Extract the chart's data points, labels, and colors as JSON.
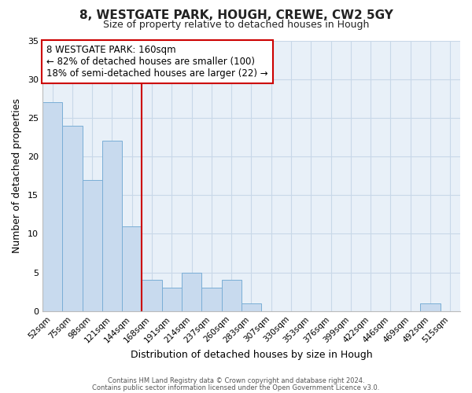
{
  "title1": "8, WESTGATE PARK, HOUGH, CREWE, CW2 5GY",
  "title2": "Size of property relative to detached houses in Hough",
  "xlabel": "Distribution of detached houses by size in Hough",
  "ylabel": "Number of detached properties",
  "bar_labels": [
    "52sqm",
    "75sqm",
    "98sqm",
    "121sqm",
    "144sqm",
    "168sqm",
    "191sqm",
    "214sqm",
    "237sqm",
    "260sqm",
    "283sqm",
    "307sqm",
    "330sqm",
    "353sqm",
    "376sqm",
    "399sqm",
    "422sqm",
    "446sqm",
    "469sqm",
    "492sqm",
    "515sqm"
  ],
  "bar_values": [
    27,
    24,
    17,
    22,
    11,
    4,
    3,
    5,
    3,
    4,
    1,
    0,
    0,
    0,
    0,
    0,
    0,
    0,
    0,
    1,
    0
  ],
  "bar_color": "#c8daee",
  "bar_edge_color": "#7aaed6",
  "grid_color": "#c8d8e8",
  "annotation_text": "8 WESTGATE PARK: 160sqm\n← 82% of detached houses are smaller (100)\n18% of semi-detached houses are larger (22) →",
  "vline_color": "#cc0000",
  "box_edge_color": "#cc0000",
  "ylim": [
    0,
    35
  ],
  "yticks": [
    0,
    5,
    10,
    15,
    20,
    25,
    30,
    35
  ],
  "footer1": "Contains HM Land Registry data © Crown copyright and database right 2024.",
  "footer2": "Contains public sector information licensed under the Open Government Licence v3.0.",
  "fig_bg_color": "#ffffff",
  "plot_bg_color": "#e8f0f8"
}
